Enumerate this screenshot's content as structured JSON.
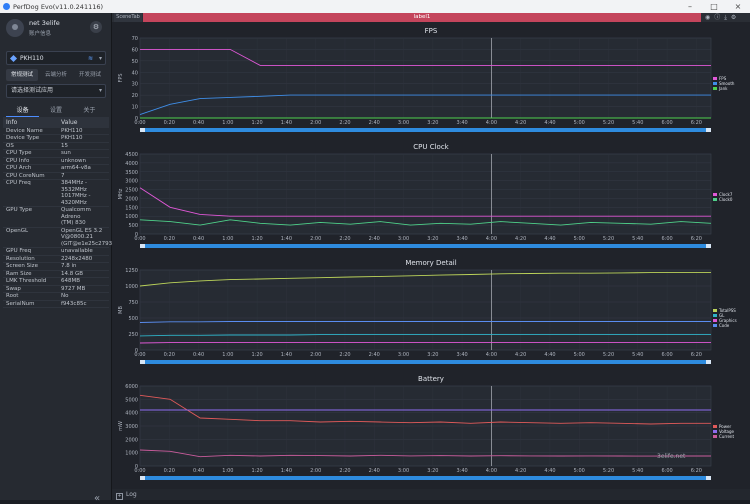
{
  "window": {
    "title": "PerfDog Evo(v11.0.241116)"
  },
  "user": {
    "name": "net 3elife",
    "info": "账户信息"
  },
  "device": {
    "name": "PKH110"
  },
  "modes": [
    "常规测试",
    "云端分析",
    "开发测试"
  ],
  "app_select": {
    "placeholder": "请选择测试应用"
  },
  "subtabs": [
    "设备",
    "设置",
    "关于"
  ],
  "info_table": {
    "headers": [
      "Info",
      "Value"
    ],
    "rows": [
      {
        "k": "Device Name",
        "v": "PKH110"
      },
      {
        "k": "Device Type",
        "v": "PKH110"
      },
      {
        "k": "OS",
        "v": "15"
      },
      {
        "k": "CPU Type",
        "v": "sun"
      },
      {
        "k": "CPU Info",
        "v": "unknown"
      },
      {
        "k": "CPU Arch",
        "v": "arm64-v8a"
      },
      {
        "k": "CPU CoreNum",
        "v": "7"
      },
      {
        "k": "CPU Freq",
        "v": "384MHz - 3532MHz\n1017MHz - 4320MHz"
      },
      {
        "k": "GPU Type",
        "v": "Qualcomm Adreno\n(TM) 830"
      },
      {
        "k": "OpenGL",
        "v": "OpenGL ES 3.2\nV@0800.21\n(GIT@e1e25c2793"
      },
      {
        "k": "GPU Freq",
        "v": "unavailable"
      },
      {
        "k": "Resolution",
        "v": "2248x2480"
      },
      {
        "k": "Screen Size",
        "v": "7.8 in"
      },
      {
        "k": "Ram Size",
        "v": "14.8 GB"
      },
      {
        "k": "LMK Threshold",
        "v": "648MB"
      },
      {
        "k": "Swap",
        "v": "9727 MB"
      },
      {
        "k": "Root",
        "v": "No"
      },
      {
        "k": "SerialNum",
        "v": "f943c85c"
      }
    ]
  },
  "tabs": {
    "scene": "SceneTab",
    "label": "label1"
  },
  "log": {
    "label": "Log"
  },
  "watermark": {
    "text": "3elife.net"
  },
  "chart_data": [
    {
      "type": "line",
      "title": "FPS",
      "ylabel": "FPS",
      "ylim": [
        0,
        70
      ],
      "yticks": [
        0,
        10,
        20,
        30,
        40,
        50,
        60,
        70
      ],
      "xticks": [
        "0:00",
        "0:20",
        "0:40",
        "1:00",
        "1:20",
        "1:40",
        "2:00",
        "2:20",
        "2:40",
        "3:00",
        "3:20",
        "3:40",
        "4:00",
        "4:20",
        "4:40",
        "5:00",
        "5:20",
        "5:40",
        "6:00",
        "6:20"
      ],
      "series": [
        {
          "name": "FPS",
          "color": "#e158d8",
          "values": [
            60,
            60,
            60,
            60,
            46,
            46,
            46,
            46,
            46,
            46,
            46,
            46,
            46,
            46,
            46,
            46,
            46,
            46,
            46,
            46
          ]
        },
        {
          "name": "Smooth",
          "color": "#3f8ee8",
          "values": [
            3,
            12,
            17,
            18,
            19,
            20,
            20,
            20,
            20,
            20,
            20,
            20,
            20,
            20,
            20,
            20,
            20,
            20,
            20,
            20
          ]
        },
        {
          "name": "Jank",
          "color": "#4fd14f",
          "values": [
            0,
            0,
            0,
            0,
            0,
            0,
            0,
            0,
            0,
            0,
            0,
            0,
            0,
            0,
            0,
            0,
            0,
            0,
            0,
            0
          ]
        }
      ]
    },
    {
      "type": "line",
      "title": "CPU Clock",
      "ylabel": "MHz",
      "ylim": [
        0,
        4500
      ],
      "yticks": [
        0,
        500,
        1000,
        1500,
        2000,
        2500,
        3000,
        3500,
        4000,
        4500
      ],
      "xticks": [
        "0:00",
        "0:20",
        "0:40",
        "1:00",
        "1:20",
        "1:40",
        "2:00",
        "2:20",
        "2:40",
        "3:00",
        "3:20",
        "3:40",
        "4:00",
        "4:20",
        "4:40",
        "5:00",
        "5:20",
        "5:40",
        "6:00",
        "6:20"
      ],
      "series": [
        {
          "name": "Clock7",
          "color": "#e158d8",
          "values": [
            2600,
            1500,
            1100,
            1000,
            1000,
            1000,
            1000,
            1000,
            1000,
            1000,
            1000,
            1000,
            1000,
            1000,
            1000,
            1000,
            1000,
            1000,
            1000,
            1000
          ]
        },
        {
          "name": "Clock0",
          "color": "#4fd18a",
          "values": [
            800,
            700,
            500,
            800,
            600,
            500,
            650,
            550,
            700,
            500,
            600,
            550,
            700,
            600,
            500,
            650,
            600,
            550,
            700,
            600
          ]
        }
      ]
    },
    {
      "type": "line",
      "title": "Memory Detail",
      "ylabel": "MB",
      "ylim": [
        0,
        1250
      ],
      "yticks": [
        0,
        250,
        500,
        750,
        1000,
        1250
      ],
      "xticks": [
        "0:00",
        "0:20",
        "0:40",
        "1:00",
        "1:20",
        "1:40",
        "2:00",
        "2:20",
        "2:40",
        "3:00",
        "3:20",
        "3:40",
        "4:00",
        "4:20",
        "4:40",
        "5:00",
        "5:20",
        "5:40",
        "6:00",
        "6:20"
      ],
      "series": [
        {
          "name": "TotalPSS",
          "color": "#bcd45a",
          "values": [
            1000,
            1050,
            1080,
            1100,
            1110,
            1120,
            1130,
            1140,
            1150,
            1160,
            1170,
            1180,
            1190,
            1195,
            1200,
            1200,
            1205,
            1210,
            1210,
            1210
          ]
        },
        {
          "name": "GL",
          "color": "#2fb3c8",
          "values": [
            220,
            230,
            230,
            235,
            235,
            235,
            240,
            240,
            240,
            240,
            240,
            240,
            240,
            240,
            240,
            240,
            240,
            240,
            240,
            240
          ]
        },
        {
          "name": "Graphics",
          "color": "#e158d8",
          "values": [
            110,
            115,
            115,
            115,
            115,
            115,
            115,
            115,
            115,
            115,
            115,
            115,
            115,
            115,
            115,
            115,
            115,
            115,
            115,
            115
          ]
        },
        {
          "name": "Code",
          "color": "#5a8df0",
          "values": [
            430,
            440,
            440,
            445,
            445,
            445,
            445,
            445,
            445,
            445,
            445,
            445,
            445,
            445,
            445,
            445,
            445,
            445,
            445,
            445
          ]
        }
      ]
    },
    {
      "type": "line",
      "title": "Battery",
      "ylabel": "mW",
      "ylim": [
        0,
        6000
      ],
      "yticks": [
        0,
        1000,
        2000,
        3000,
        4000,
        5000,
        6000
      ],
      "xticks": [
        "0:00",
        "0:20",
        "0:40",
        "1:00",
        "1:20",
        "1:40",
        "2:00",
        "2:20",
        "2:40",
        "3:00",
        "3:20",
        "3:40",
        "4:00",
        "4:20",
        "4:40",
        "5:00",
        "5:20",
        "5:40",
        "6:00",
        "6:20"
      ],
      "series": [
        {
          "name": "Power",
          "color": "#e05a5a",
          "values": [
            5300,
            5000,
            3600,
            3500,
            3400,
            3400,
            3300,
            3350,
            3300,
            3250,
            3300,
            3200,
            3300,
            3250,
            3200,
            3250,
            3200,
            3150,
            3200,
            3200
          ]
        },
        {
          "name": "Voltage",
          "color": "#8f6cf0",
          "values": [
            4200,
            4200,
            4200,
            4200,
            4200,
            4200,
            4200,
            4200,
            4200,
            4200,
            4200,
            4200,
            4200,
            4200,
            4200,
            4200,
            4200,
            4200,
            4200,
            4200
          ]
        },
        {
          "name": "Current",
          "color": "#c95c9c",
          "values": [
            1200,
            1100,
            700,
            800,
            750,
            800,
            780,
            750,
            800,
            760,
            780,
            750,
            770,
            760,
            750,
            760,
            750,
            740,
            750,
            750
          ]
        }
      ]
    }
  ]
}
